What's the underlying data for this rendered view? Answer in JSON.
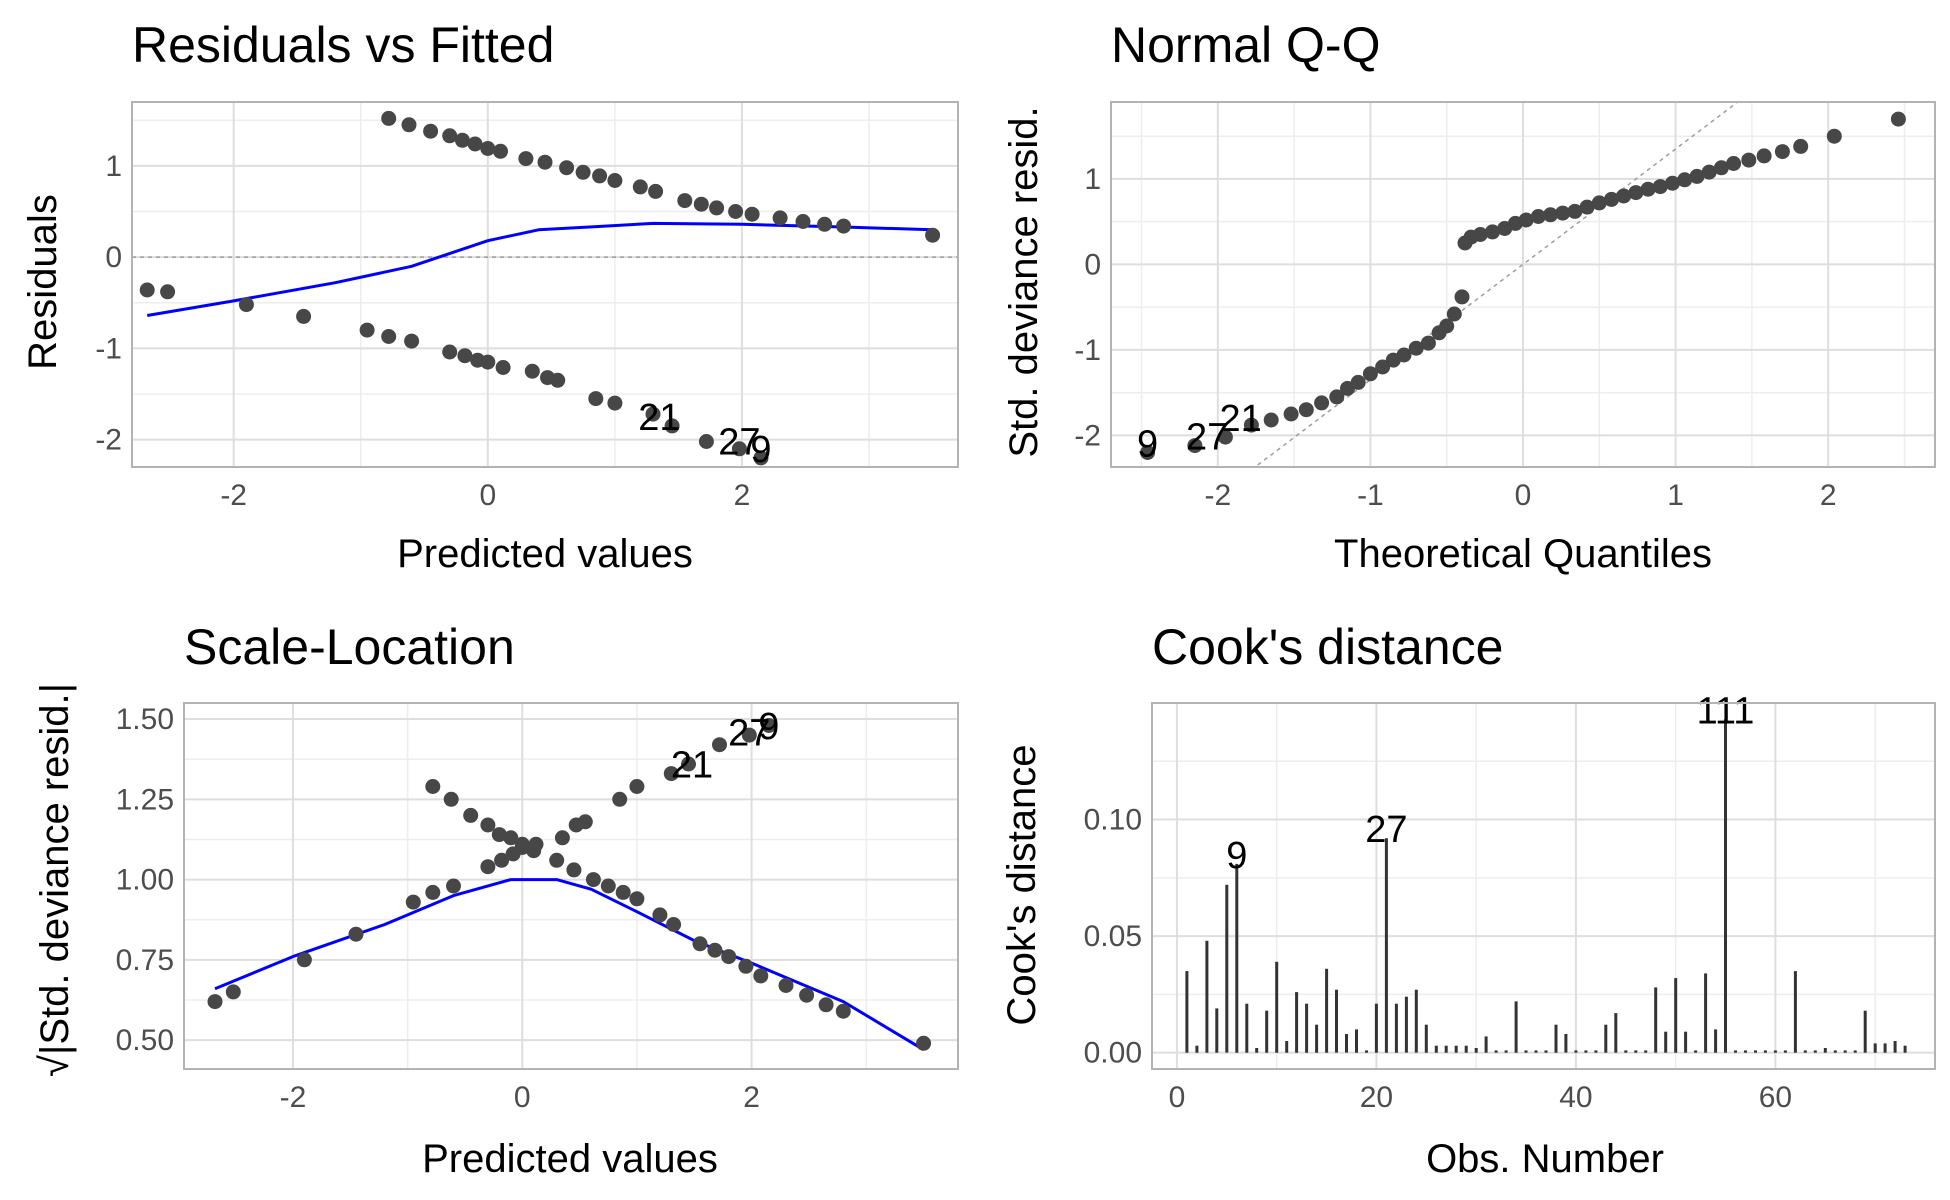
{
  "chart_data": [
    {
      "id": "residuals",
      "type": "scatter",
      "title": "Residuals vs Fitted",
      "xlabel": "Predicted values",
      "ylabel": "Residuals",
      "xlim": [
        -2.8,
        3.7
      ],
      "ylim": [
        -2.3,
        1.7
      ],
      "xticks": [
        -2,
        0,
        2
      ],
      "yticks": [
        -2,
        -1,
        0,
        1
      ],
      "grid": true,
      "hline": 0,
      "points": [
        [
          -2.68,
          -0.36
        ],
        [
          -2.52,
          -0.38
        ],
        [
          -1.9,
          -0.52
        ],
        [
          -1.45,
          -0.65
        ],
        [
          -0.95,
          -0.8
        ],
        [
          -0.78,
          -0.87
        ],
        [
          -0.6,
          -0.92
        ],
        [
          -0.3,
          -1.04
        ],
        [
          -0.18,
          -1.08
        ],
        [
          -0.08,
          -1.13
        ],
        [
          0.0,
          -1.15
        ],
        [
          0.12,
          -1.21
        ],
        [
          0.35,
          -1.25
        ],
        [
          0.47,
          -1.32
        ],
        [
          0.55,
          -1.35
        ],
        [
          0.85,
          -1.55
        ],
        [
          1.0,
          -1.6
        ],
        [
          1.3,
          -1.72
        ],
        [
          1.45,
          -1.85
        ],
        [
          1.72,
          -2.02
        ],
        [
          1.98,
          -2.1
        ],
        [
          2.15,
          -2.2
        ],
        [
          -0.78,
          1.52
        ],
        [
          -0.62,
          1.45
        ],
        [
          -0.45,
          1.38
        ],
        [
          -0.3,
          1.33
        ],
        [
          -0.2,
          1.28
        ],
        [
          -0.1,
          1.24
        ],
        [
          0.0,
          1.19
        ],
        [
          0.1,
          1.16
        ],
        [
          0.3,
          1.08
        ],
        [
          0.45,
          1.04
        ],
        [
          0.62,
          0.98
        ],
        [
          0.75,
          0.93
        ],
        [
          0.88,
          0.89
        ],
        [
          1.0,
          0.84
        ],
        [
          1.2,
          0.77
        ],
        [
          1.32,
          0.72
        ],
        [
          1.55,
          0.62
        ],
        [
          1.68,
          0.58
        ],
        [
          1.8,
          0.54
        ],
        [
          1.95,
          0.5
        ],
        [
          2.08,
          0.47
        ],
        [
          2.3,
          0.43
        ],
        [
          2.48,
          0.39
        ],
        [
          2.65,
          0.36
        ],
        [
          2.8,
          0.34
        ],
        [
          3.5,
          0.24
        ]
      ],
      "smooth": [
        [
          -2.68,
          -0.64
        ],
        [
          -2.0,
          -0.48
        ],
        [
          -1.2,
          -0.28
        ],
        [
          -0.6,
          -0.1
        ],
        [
          0.0,
          0.18
        ],
        [
          0.4,
          0.3
        ],
        [
          0.8,
          0.33
        ],
        [
          1.3,
          0.37
        ],
        [
          2.0,
          0.36
        ],
        [
          2.8,
          0.33
        ],
        [
          3.5,
          0.3
        ]
      ],
      "labels": [
        {
          "text": "21",
          "x": 1.35,
          "y": -1.85
        },
        {
          "text": "27",
          "x": 1.98,
          "y": -2.12
        },
        {
          "text": "9",
          "x": 2.15,
          "y": -2.2
        }
      ]
    },
    {
      "id": "qq",
      "type": "scatter",
      "title": "Normal Q-Q",
      "xlabel": "Theoretical Quantiles",
      "ylabel": "Std. deviance resid.",
      "xlim": [
        -2.7,
        2.7
      ],
      "ylim": [
        -2.37,
        1.9
      ],
      "xticks": [
        -2,
        -1,
        0,
        1,
        2
      ],
      "yticks": [
        -2,
        -1,
        0,
        1
      ],
      "grid": true,
      "refline": {
        "slope": 1.35,
        "intercept": 0.0
      },
      "points": [
        [
          -2.46,
          -2.2
        ],
        [
          -2.15,
          -2.12
        ],
        [
          -1.95,
          -2.02
        ],
        [
          -1.78,
          -1.88
        ],
        [
          -1.65,
          -1.82
        ],
        [
          -1.52,
          -1.75
        ],
        [
          -1.42,
          -1.7
        ],
        [
          -1.32,
          -1.62
        ],
        [
          -1.22,
          -1.55
        ],
        [
          -1.15,
          -1.45
        ],
        [
          -1.08,
          -1.38
        ],
        [
          -1.0,
          -1.28
        ],
        [
          -0.92,
          -1.2
        ],
        [
          -0.85,
          -1.12
        ],
        [
          -0.78,
          -1.06
        ],
        [
          -0.7,
          -0.98
        ],
        [
          -0.62,
          -0.92
        ],
        [
          -0.55,
          -0.8
        ],
        [
          -0.5,
          -0.72
        ],
        [
          -0.45,
          -0.58
        ],
        [
          -0.4,
          -0.38
        ],
        [
          -0.38,
          0.25
        ],
        [
          -0.34,
          0.32
        ],
        [
          -0.28,
          0.35
        ],
        [
          -0.2,
          0.38
        ],
        [
          -0.12,
          0.42
        ],
        [
          -0.05,
          0.48
        ],
        [
          0.02,
          0.52
        ],
        [
          0.1,
          0.56
        ],
        [
          0.18,
          0.58
        ],
        [
          0.26,
          0.6
        ],
        [
          0.34,
          0.62
        ],
        [
          0.42,
          0.67
        ],
        [
          0.5,
          0.72
        ],
        [
          0.58,
          0.76
        ],
        [
          0.66,
          0.8
        ],
        [
          0.74,
          0.84
        ],
        [
          0.82,
          0.88
        ],
        [
          0.9,
          0.91
        ],
        [
          0.98,
          0.95
        ],
        [
          1.06,
          0.99
        ],
        [
          1.14,
          1.03
        ],
        [
          1.22,
          1.08
        ],
        [
          1.3,
          1.13
        ],
        [
          1.38,
          1.18
        ],
        [
          1.48,
          1.22
        ],
        [
          1.58,
          1.27
        ],
        [
          1.7,
          1.32
        ],
        [
          1.82,
          1.38
        ],
        [
          2.04,
          1.5
        ],
        [
          2.46,
          1.7
        ]
      ],
      "labels": [
        {
          "text": "9",
          "x": -2.46,
          "y": -2.2
        },
        {
          "text": "27",
          "x": -2.07,
          "y": -2.12
        },
        {
          "text": "21",
          "x": -1.85,
          "y": -1.9
        }
      ]
    },
    {
      "id": "scale",
      "type": "scatter",
      "title": "Scale-Location",
      "xlabel": "Predicted values",
      "ylabel": "√|Std. deviance resid.|",
      "xlim": [
        -2.95,
        3.8
      ],
      "ylim": [
        0.41,
        1.55
      ],
      "xticks": [
        -2,
        0,
        2
      ],
      "yticks": [
        0.5,
        0.75,
        1.0,
        1.25,
        1.5
      ],
      "ytick_labels": [
        "0.50",
        "0.75",
        "1.00",
        "1.25",
        "1.50"
      ],
      "grid": true,
      "points": [
        [
          -2.68,
          0.62
        ],
        [
          -2.52,
          0.65
        ],
        [
          -1.9,
          0.75
        ],
        [
          -1.45,
          0.83
        ],
        [
          -0.95,
          0.93
        ],
        [
          -0.78,
          0.96
        ],
        [
          -0.6,
          0.98
        ],
        [
          -0.3,
          1.04
        ],
        [
          -0.18,
          1.06
        ],
        [
          -0.08,
          1.08
        ],
        [
          0.0,
          1.1
        ],
        [
          0.12,
          1.11
        ],
        [
          0.35,
          1.13
        ],
        [
          0.47,
          1.17
        ],
        [
          0.55,
          1.18
        ],
        [
          0.85,
          1.25
        ],
        [
          1.0,
          1.29
        ],
        [
          1.3,
          1.33
        ],
        [
          1.45,
          1.36
        ],
        [
          1.72,
          1.42
        ],
        [
          1.98,
          1.45
        ],
        [
          2.15,
          1.48
        ],
        [
          -0.78,
          1.29
        ],
        [
          -0.62,
          1.25
        ],
        [
          -0.45,
          1.2
        ],
        [
          -0.3,
          1.17
        ],
        [
          -0.2,
          1.14
        ],
        [
          -0.1,
          1.13
        ],
        [
          0.0,
          1.11
        ],
        [
          0.1,
          1.09
        ],
        [
          0.3,
          1.06
        ],
        [
          0.45,
          1.03
        ],
        [
          0.62,
          1.0
        ],
        [
          0.75,
          0.98
        ],
        [
          0.88,
          0.96
        ],
        [
          1.0,
          0.94
        ],
        [
          1.2,
          0.89
        ],
        [
          1.32,
          0.86
        ],
        [
          1.55,
          0.8
        ],
        [
          1.68,
          0.78
        ],
        [
          1.8,
          0.76
        ],
        [
          1.95,
          0.73
        ],
        [
          2.08,
          0.7
        ],
        [
          2.3,
          0.67
        ],
        [
          2.48,
          0.64
        ],
        [
          2.65,
          0.61
        ],
        [
          2.8,
          0.59
        ],
        [
          3.5,
          0.49
        ]
      ],
      "smooth": [
        [
          -2.68,
          0.66
        ],
        [
          -2.0,
          0.76
        ],
        [
          -1.2,
          0.86
        ],
        [
          -0.6,
          0.95
        ],
        [
          -0.1,
          1.0
        ],
        [
          0.3,
          1.0
        ],
        [
          0.6,
          0.97
        ],
        [
          1.0,
          0.9
        ],
        [
          1.5,
          0.81
        ],
        [
          2.0,
          0.74
        ],
        [
          2.8,
          0.62
        ],
        [
          3.5,
          0.47
        ]
      ],
      "labels": [
        {
          "text": "21",
          "x": 1.48,
          "y": 1.33
        },
        {
          "text": "27",
          "x": 1.98,
          "y": 1.43
        },
        {
          "text": "9",
          "x": 2.15,
          "y": 1.45
        }
      ]
    },
    {
      "id": "cooks",
      "type": "bar",
      "title": "Cook's distance",
      "xlabel": "Obs. Number",
      "ylabel": "Cook's distance",
      "xlim": [
        -2.5,
        76
      ],
      "ylim": [
        -0.007,
        0.15
      ],
      "xticks": [
        0,
        20,
        40,
        60
      ],
      "yticks": [
        0.0,
        0.05,
        0.1
      ],
      "ytick_labels": [
        "0.00",
        "0.05",
        "0.10"
      ],
      "grid": true,
      "x": [
        1,
        2,
        3,
        4,
        5,
        6,
        7,
        8,
        9,
        10,
        11,
        12,
        13,
        14,
        15,
        16,
        17,
        18,
        19,
        20,
        21,
        22,
        23,
        24,
        25,
        26,
        27,
        28,
        29,
        30,
        31,
        32,
        33,
        34,
        35,
        36,
        37,
        38,
        39,
        40,
        41,
        42,
        43,
        44,
        45,
        46,
        47,
        48,
        49,
        50,
        51,
        52,
        53,
        54,
        55,
        56,
        57,
        58,
        59,
        60,
        61,
        62,
        63,
        64,
        65,
        66,
        67,
        68,
        69,
        70,
        71,
        72,
        73
      ],
      "values": [
        0.035,
        0.003,
        0.048,
        0.019,
        0.072,
        0.081,
        0.021,
        0.002,
        0.018,
        0.039,
        0.005,
        0.026,
        0.021,
        0.012,
        0.036,
        0.027,
        0.008,
        0.01,
        0.001,
        0.021,
        0.092,
        0.021,
        0.024,
        0.027,
        0.012,
        0.003,
        0.003,
        0.003,
        0.003,
        0.002,
        0.007,
        0.001,
        0.001,
        0.022,
        0.001,
        0.001,
        0.001,
        0.012,
        0.008,
        0.001,
        0.001,
        0.001,
        0.012,
        0.017,
        0.001,
        0.001,
        0.001,
        0.028,
        0.009,
        0.032,
        0.009,
        0.001,
        0.034,
        0.01,
        0.143,
        0.001,
        0.001,
        0.001,
        0.001,
        0.001,
        0.001,
        0.035,
        0.001,
        0.001,
        0.002,
        0.001,
        0.001,
        0.001,
        0.018,
        0.004,
        0.004,
        0.005,
        0.003
      ],
      "labels": [
        {
          "text": "9",
          "x": 6,
          "y": 0.081
        },
        {
          "text": "27",
          "x": 21,
          "y": 0.092
        },
        {
          "text": "111",
          "x": 55,
          "y": 0.143
        }
      ]
    }
  ]
}
